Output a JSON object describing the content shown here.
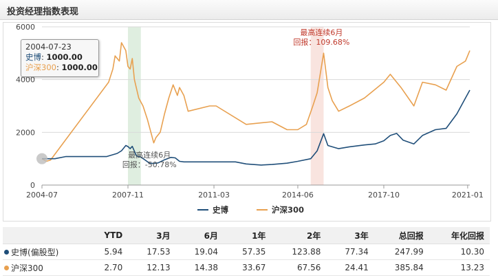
{
  "header": {
    "title": "投资经理指数表现"
  },
  "colors": {
    "series1": "#1f4e79",
    "series2": "#e8a04f",
    "shade_green": "#dfeee0",
    "shade_red": "#f9e4df",
    "annot_red": "#c0392b"
  },
  "tooltip": {
    "date": "2004-07-23",
    "row1_label": "史博",
    "row1_value": "1000.00",
    "row2_label": "沪深300",
    "row2_value": "1000.00"
  },
  "chart_data": {
    "type": "line",
    "x_ticks": [
      "2004-07",
      "2007-11",
      "2011-03",
      "2014-06",
      "2017-10",
      "2021-01"
    ],
    "y_ticks": [
      "0",
      "2000",
      "4000",
      "6000"
    ],
    "ylim": [
      0,
      6000
    ],
    "grid": true,
    "legend": "bottom",
    "series": [
      {
        "name": "史博",
        "points": [
          [
            "2004-07",
            1000
          ],
          [
            "2005-01",
            1000
          ],
          [
            "2005-06",
            1080
          ],
          [
            "2006-01",
            1080
          ],
          [
            "2006-06",
            1080
          ],
          [
            "2007-01",
            1080
          ],
          [
            "2007-06",
            1200
          ],
          [
            "2007-08",
            1300
          ],
          [
            "2007-10",
            1500
          ],
          [
            "2007-11",
            1460
          ],
          [
            "2007-12",
            1380
          ],
          [
            "2008-01",
            1470
          ],
          [
            "2008-03",
            1100
          ],
          [
            "2008-05",
            1060
          ],
          [
            "2008-07",
            950
          ],
          [
            "2008-09",
            830
          ],
          [
            "2008-11",
            820
          ],
          [
            "2009-01",
            840
          ],
          [
            "2009-04",
            960
          ],
          [
            "2009-07",
            1050
          ],
          [
            "2009-09",
            1030
          ],
          [
            "2009-11",
            900
          ],
          [
            "2010-01",
            880
          ],
          [
            "2010-06",
            880
          ],
          [
            "2011-01",
            880
          ],
          [
            "2011-06",
            880
          ],
          [
            "2012-01",
            880
          ],
          [
            "2012-06",
            800
          ],
          [
            "2013-01",
            760
          ],
          [
            "2013-06",
            780
          ],
          [
            "2014-01",
            830
          ],
          [
            "2014-06",
            900
          ],
          [
            "2014-12",
            1000
          ],
          [
            "2015-03",
            1300
          ],
          [
            "2015-06",
            1950
          ],
          [
            "2015-08",
            1500
          ],
          [
            "2015-10",
            1450
          ],
          [
            "2016-01",
            1380
          ],
          [
            "2016-06",
            1450
          ],
          [
            "2017-01",
            1520
          ],
          [
            "2017-06",
            1560
          ],
          [
            "2017-10",
            1680
          ],
          [
            "2018-01",
            1880
          ],
          [
            "2018-04",
            1960
          ],
          [
            "2018-07",
            1700
          ],
          [
            "2018-12",
            1560
          ],
          [
            "2019-04",
            1880
          ],
          [
            "2019-10",
            2100
          ],
          [
            "2020-03",
            2150
          ],
          [
            "2020-08",
            2700
          ],
          [
            "2020-12",
            3300
          ],
          [
            "2021-02",
            3600
          ]
        ]
      },
      {
        "name": "沪深300",
        "points": [
          [
            "2004-07",
            1000
          ],
          [
            "2004-09",
            900
          ],
          [
            "2004-11",
            950
          ],
          [
            "2007-02",
            3900
          ],
          [
            "2007-04",
            4400
          ],
          [
            "2007-05",
            4900
          ],
          [
            "2007-07",
            4700
          ],
          [
            "2007-08",
            5400
          ],
          [
            "2007-10",
            5100
          ],
          [
            "2007-11",
            4500
          ],
          [
            "2007-12",
            4400
          ],
          [
            "2008-01",
            4800
          ],
          [
            "2008-02",
            4000
          ],
          [
            "2008-04",
            3300
          ],
          [
            "2008-06",
            3000
          ],
          [
            "2008-08",
            2500
          ],
          [
            "2008-10",
            1900
          ],
          [
            "2008-11",
            1600
          ],
          [
            "2008-12",
            1800
          ],
          [
            "2009-02",
            2000
          ],
          [
            "2009-04",
            2700
          ],
          [
            "2009-06",
            3300
          ],
          [
            "2009-08",
            3800
          ],
          [
            "2009-10",
            3400
          ],
          [
            "2009-11",
            3700
          ],
          [
            "2010-01",
            3400
          ],
          [
            "2010-03",
            2800
          ],
          [
            "2011-01",
            3000
          ],
          [
            "2011-04",
            3000
          ],
          [
            "2012-06",
            2300
          ],
          [
            "2013-06",
            2400
          ],
          [
            "2014-01",
            2100
          ],
          [
            "2014-06",
            2100
          ],
          [
            "2014-10",
            2300
          ],
          [
            "2015-01",
            3000
          ],
          [
            "2015-03",
            3500
          ],
          [
            "2015-06",
            5000
          ],
          [
            "2015-08",
            3700
          ],
          [
            "2015-10",
            3200
          ],
          [
            "2016-01",
            2800
          ],
          [
            "2016-06",
            3000
          ],
          [
            "2017-01",
            3300
          ],
          [
            "2017-10",
            3900
          ],
          [
            "2018-01",
            4200
          ],
          [
            "2018-06",
            3700
          ],
          [
            "2018-12",
            3000
          ],
          [
            "2019-04",
            3900
          ],
          [
            "2019-10",
            3800
          ],
          [
            "2020-03",
            3600
          ],
          [
            "2020-08",
            4500
          ],
          [
            "2020-12",
            4700
          ],
          [
            "2021-02",
            5100
          ]
        ]
      }
    ],
    "annotations": [
      {
        "text_line1": "最高连续6月",
        "text_line2": "回报：109.68%",
        "x": "2015-05"
      },
      {
        "text_line1": "最高连续6月",
        "text_line2": "回报：-50.78%",
        "x": "2008-09"
      }
    ],
    "shaded_periods": [
      {
        "from": "2007-11",
        "to": "2008-05",
        "kind": "worst"
      },
      {
        "from": "2014-12",
        "to": "2015-06",
        "kind": "best"
      }
    ]
  },
  "table": {
    "headers": [
      "",
      "YTD",
      "3月",
      "6月",
      "1年",
      "2年",
      "3年",
      "总回报",
      "年化回报"
    ],
    "rows": [
      {
        "name": "史博(偏股型)",
        "values": [
          "5.94",
          "17.53",
          "19.04",
          "57.35",
          "123.88",
          "77.34",
          "247.99",
          "10.30"
        ]
      },
      {
        "name": "沪深300",
        "values": [
          "2.70",
          "12.13",
          "14.38",
          "33.67",
          "67.56",
          "24.41",
          "385.84",
          "13.23"
        ]
      }
    ]
  }
}
